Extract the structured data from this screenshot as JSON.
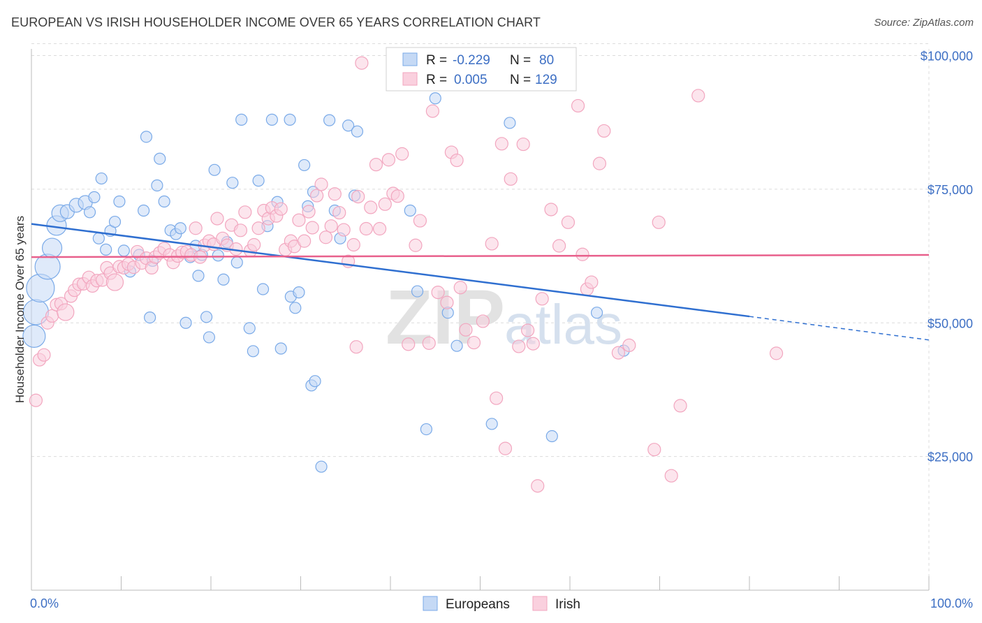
{
  "title": "EUROPEAN VS IRISH HOUSEHOLDER INCOME OVER 65 YEARS CORRELATION CHART",
  "source": "Source: ZipAtlas.com",
  "watermark": {
    "zip": "ZIP",
    "atlas": "atlas"
  },
  "chart_data": {
    "type": "scatter",
    "xlabel": "",
    "ylabel": "Householder Income Over 65 years",
    "xlim": [
      0,
      100
    ],
    "ylim": [
      0,
      105000
    ],
    "x_tick_labels": [
      "0.0%",
      "100.0%"
    ],
    "y_ticks": [
      25000,
      50000,
      75000,
      100000
    ],
    "y_tick_labels": [
      "$25,000",
      "$50,000",
      "$75,000",
      "$100,000"
    ],
    "grid": true,
    "legend": {
      "placement": "top-center",
      "entries": [
        {
          "r_label": "R =",
          "r_value": "-0.229",
          "n_label": "N =",
          "n_value": "80",
          "color": "#7aaae8"
        },
        {
          "r_label": "R =",
          "r_value": "0.005",
          "n_label": "N =",
          "n_value": "129",
          "color": "#f2a6bf"
        }
      ]
    },
    "bottom_legend": [
      "Europeans",
      "Irish"
    ],
    "series": [
      {
        "name": "Europeans",
        "color": "#7aaae8",
        "trend": {
          "x0": 0,
          "y0": 68500,
          "x1": 80,
          "y1": 51200,
          "dash_to_x": 100,
          "dash_to_y": 46800,
          "color": "#2f6fd0"
        },
        "points": [
          [
            0.3,
            47500,
            16
          ],
          [
            0.5,
            52000,
            18
          ],
          [
            1,
            56500,
            20
          ],
          [
            1.8,
            60500,
            18
          ],
          [
            2.3,
            64000,
            14
          ],
          [
            2.8,
            68200,
            14
          ],
          [
            3.2,
            70500,
            12
          ],
          [
            4,
            70800,
            10
          ],
          [
            5,
            72000,
            10
          ],
          [
            6,
            72500,
            10
          ],
          [
            6.5,
            70700,
            8
          ],
          [
            7,
            73500,
            8
          ],
          [
            7.5,
            65800,
            8
          ],
          [
            7.8,
            77000,
            8
          ],
          [
            8.3,
            63700,
            8
          ],
          [
            8.8,
            67200,
            8
          ],
          [
            9.3,
            68900,
            8
          ],
          [
            9.8,
            72700,
            8
          ],
          [
            10.3,
            63500,
            8
          ],
          [
            11,
            59600,
            8
          ],
          [
            12,
            62700,
            8
          ],
          [
            12.5,
            71000,
            8
          ],
          [
            12.8,
            84800,
            8
          ],
          [
            13.2,
            51000,
            8
          ],
          [
            13.5,
            61600,
            8
          ],
          [
            14,
            75700,
            8
          ],
          [
            14.3,
            80700,
            8
          ],
          [
            14.8,
            72700,
            8
          ],
          [
            15.5,
            67300,
            8
          ],
          [
            16.1,
            66600,
            8
          ],
          [
            16.6,
            67700,
            8
          ],
          [
            17.2,
            50000,
            8
          ],
          [
            17.7,
            62300,
            8
          ],
          [
            18.3,
            64400,
            8
          ],
          [
            18.6,
            58800,
            8
          ],
          [
            19,
            62700,
            8
          ],
          [
            19.5,
            51100,
            8
          ],
          [
            19.8,
            47300,
            8
          ],
          [
            20.4,
            78600,
            8
          ],
          [
            20.8,
            62600,
            8
          ],
          [
            21.4,
            58100,
            8
          ],
          [
            21.8,
            65100,
            8
          ],
          [
            22.4,
            76200,
            8
          ],
          [
            22.9,
            61300,
            8
          ],
          [
            23.4,
            88000,
            8
          ],
          [
            24.3,
            49000,
            8
          ],
          [
            24.7,
            44700,
            8
          ],
          [
            25.3,
            76600,
            8
          ],
          [
            25.8,
            56300,
            8
          ],
          [
            26.3,
            68100,
            8
          ],
          [
            26.8,
            88000,
            8
          ],
          [
            27.4,
            72600,
            8
          ],
          [
            27.8,
            45200,
            8
          ],
          [
            28.8,
            88000,
            8
          ],
          [
            28.9,
            54900,
            8
          ],
          [
            29.4,
            52800,
            8
          ],
          [
            29.8,
            55700,
            8
          ],
          [
            30.4,
            79500,
            8
          ],
          [
            30.8,
            71800,
            8
          ],
          [
            31.4,
            74500,
            8
          ],
          [
            31.2,
            38300,
            8
          ],
          [
            31.6,
            39100,
            8
          ],
          [
            32.3,
            23100,
            8
          ],
          [
            33.2,
            87900,
            8
          ],
          [
            33.8,
            71000,
            8
          ],
          [
            34.4,
            65800,
            8
          ],
          [
            35.3,
            86900,
            8
          ],
          [
            36,
            73800,
            8
          ],
          [
            36.3,
            85800,
            8
          ],
          [
            42.2,
            71000,
            8
          ],
          [
            43,
            55900,
            8
          ],
          [
            44,
            30100,
            8
          ],
          [
            45,
            92000,
            8
          ],
          [
            46.4,
            51900,
            8
          ],
          [
            47.4,
            45700,
            8
          ],
          [
            51.3,
            31100,
            8
          ],
          [
            53.3,
            87400,
            8
          ],
          [
            58,
            28800,
            8
          ],
          [
            63,
            51900,
            8
          ],
          [
            66,
            44800,
            8
          ]
        ]
      },
      {
        "name": "Irish",
        "color": "#f2a6bf",
        "trend": {
          "x0": 0,
          "y0": 62300,
          "x1": 100,
          "y1": 62700,
          "color": "#e8608c"
        },
        "points": [
          [
            0.5,
            35500,
            9
          ],
          [
            0.9,
            43100,
            9
          ],
          [
            1.4,
            44000,
            9
          ],
          [
            1.8,
            50000,
            9
          ],
          [
            2.3,
            51300,
            9
          ],
          [
            2.8,
            53400,
            9
          ],
          [
            3.3,
            53600,
            9
          ],
          [
            3.8,
            52000,
            12
          ],
          [
            4.4,
            55000,
            9
          ],
          [
            4.8,
            56100,
            9
          ],
          [
            5.3,
            57200,
            9
          ],
          [
            5.8,
            57300,
            9
          ],
          [
            6.4,
            58500,
            9
          ],
          [
            6.8,
            56900,
            9
          ],
          [
            7.3,
            57900,
            9
          ],
          [
            7.9,
            58000,
            9
          ],
          [
            8.4,
            60300,
            9
          ],
          [
            8.8,
            59300,
            9
          ],
          [
            9.3,
            57600,
            12
          ],
          [
            9.8,
            60500,
            9
          ],
          [
            10.3,
            60300,
            9
          ],
          [
            10.8,
            61000,
            9
          ],
          [
            11.4,
            60400,
            9
          ],
          [
            11.8,
            63300,
            9
          ],
          [
            12.3,
            61200,
            9
          ],
          [
            12.8,
            62100,
            9
          ],
          [
            13.4,
            60300,
            9
          ],
          [
            13.8,
            62300,
            9
          ],
          [
            14.3,
            63100,
            9
          ],
          [
            14.8,
            63900,
            9
          ],
          [
            15.4,
            62700,
            9
          ],
          [
            15.8,
            61300,
            9
          ],
          [
            16.3,
            62500,
            9
          ],
          [
            16.8,
            63200,
            9
          ],
          [
            17.3,
            63300,
            9
          ],
          [
            17.8,
            62700,
            9
          ],
          [
            18.3,
            67700,
            9
          ],
          [
            18.8,
            62300,
            9
          ],
          [
            19.3,
            64500,
            9
          ],
          [
            19.8,
            65300,
            9
          ],
          [
            20.3,
            64700,
            9
          ],
          [
            20.7,
            69500,
            9
          ],
          [
            21.3,
            65800,
            9
          ],
          [
            21.8,
            64500,
            9
          ],
          [
            22.3,
            68300,
            9
          ],
          [
            22.8,
            63800,
            9
          ],
          [
            23.3,
            67300,
            9
          ],
          [
            23.8,
            70700,
            9
          ],
          [
            24.4,
            63500,
            9
          ],
          [
            24.8,
            64600,
            9
          ],
          [
            25.3,
            67700,
            9
          ],
          [
            25.9,
            71000,
            9
          ],
          [
            26.4,
            69500,
            9
          ],
          [
            26.8,
            71500,
            9
          ],
          [
            27.3,
            70000,
            9
          ],
          [
            27.8,
            71300,
            9
          ],
          [
            28.3,
            63700,
            9
          ],
          [
            28.9,
            65300,
            9
          ],
          [
            29.3,
            64300,
            9
          ],
          [
            29.8,
            69200,
            9
          ],
          [
            30.4,
            65300,
            9
          ],
          [
            30.9,
            70800,
            9
          ],
          [
            31.3,
            67800,
            9
          ],
          [
            31.8,
            73800,
            9
          ],
          [
            32.3,
            75900,
            9
          ],
          [
            32.8,
            66000,
            9
          ],
          [
            33.4,
            68100,
            9
          ],
          [
            33.8,
            74100,
            9
          ],
          [
            34.3,
            70600,
            9
          ],
          [
            34.8,
            67400,
            9
          ],
          [
            35.3,
            61500,
            9
          ],
          [
            35.9,
            64600,
            9
          ],
          [
            36.4,
            73600,
            9
          ],
          [
            36.8,
            98600,
            9
          ],
          [
            37.3,
            67600,
            9
          ],
          [
            37.8,
            71600,
            9
          ],
          [
            38.4,
            79600,
            9
          ],
          [
            38.8,
            67600,
            9
          ],
          [
            39.4,
            72200,
            9
          ],
          [
            39.8,
            80500,
            9
          ],
          [
            40.3,
            74200,
            9
          ],
          [
            40.8,
            73700,
            9
          ],
          [
            41.3,
            81600,
            9
          ],
          [
            42,
            46000,
            9
          ],
          [
            42.8,
            64500,
            9
          ],
          [
            43.3,
            69100,
            9
          ],
          [
            44.3,
            46200,
            9
          ],
          [
            44.7,
            89600,
            9
          ],
          [
            45.3,
            55700,
            9
          ],
          [
            46.3,
            53800,
            9
          ],
          [
            46.8,
            81900,
            9
          ],
          [
            47.4,
            80400,
            9
          ],
          [
            47.8,
            56600,
            9
          ],
          [
            48.4,
            48700,
            9
          ],
          [
            49.3,
            46300,
            9
          ],
          [
            50.3,
            50300,
            9
          ],
          [
            51.3,
            64800,
            9
          ],
          [
            51.8,
            35900,
            9
          ],
          [
            52.4,
            83500,
            9
          ],
          [
            52.8,
            26500,
            9
          ],
          [
            53.4,
            76900,
            9
          ],
          [
            54.3,
            45600,
            9
          ],
          [
            54.8,
            83400,
            9
          ],
          [
            55.3,
            48600,
            9
          ],
          [
            55.9,
            46100,
            9
          ],
          [
            56.4,
            19500,
            9
          ],
          [
            56.9,
            54500,
            9
          ],
          [
            57.9,
            71200,
            9
          ],
          [
            58.8,
            64400,
            9
          ],
          [
            59.8,
            68800,
            9
          ],
          [
            60.9,
            90600,
            9
          ],
          [
            61.4,
            62800,
            9
          ],
          [
            61.9,
            56300,
            9
          ],
          [
            62.4,
            57600,
            9
          ],
          [
            63.3,
            79800,
            9
          ],
          [
            63.8,
            85900,
            9
          ],
          [
            65.4,
            44400,
            9
          ],
          [
            66.6,
            45800,
            9
          ],
          [
            69.4,
            26300,
            9
          ],
          [
            69.9,
            68800,
            9
          ],
          [
            71.3,
            21400,
            9
          ],
          [
            72.3,
            34500,
            9
          ],
          [
            74.3,
            92500,
            9
          ],
          [
            83,
            44300,
            9
          ],
          [
            36.2,
            45500,
            9
          ]
        ]
      }
    ]
  }
}
